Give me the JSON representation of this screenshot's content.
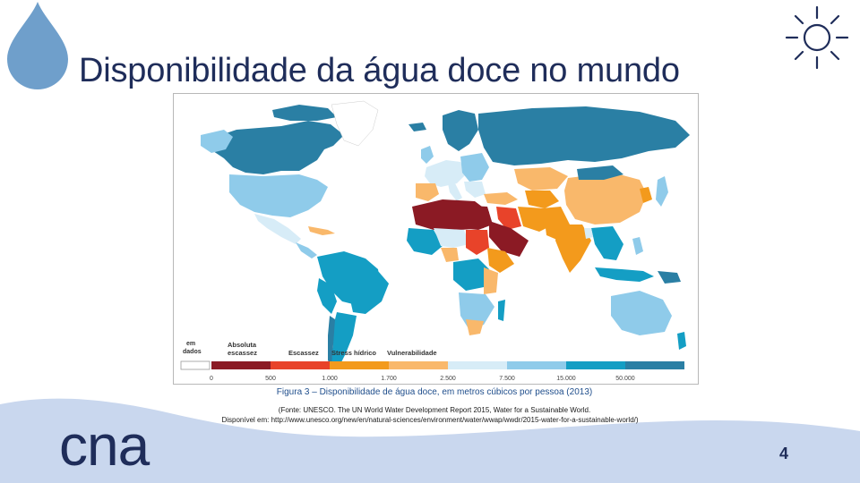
{
  "slide": {
    "title": "Disponibilidade da água doce no mundo",
    "page_number": "4",
    "logo_text": "cna"
  },
  "figure": {
    "caption": "Figura 3 – Disponibilidade de água doce, em metros cúbicos por pessoa (2013)",
    "source_line1": "(Fonte: UNESCO. The UN World Water Development Report 2015, Water for a Sustainable World.",
    "source_line2": "Disponível em: http://www.unesco.org/new/en/natural-sciences/environment/water/wwap/wwdr/2015-water-for-a-sustainable-world/)"
  },
  "map_legend": {
    "no_data_line1": "em",
    "no_data_line2": "dados",
    "categories": [
      {
        "label1": "Absoluta",
        "label2": "escassez",
        "color": "#8b1a24"
      },
      {
        "label1": "",
        "label2": "Escassez",
        "color": "#e8432a"
      },
      {
        "label1": "",
        "label2": "Stress hídrico",
        "color": "#f39a1c"
      },
      {
        "label1": "",
        "label2": "Vulnerabilidade",
        "color": "#f9b86b"
      },
      {
        "label1": "",
        "label2": "",
        "color": "#d7ecf7"
      },
      {
        "label1": "",
        "label2": "",
        "color": "#8fcbea"
      },
      {
        "label1": "",
        "label2": "",
        "color": "#149ec4"
      },
      {
        "label1": "",
        "label2": "",
        "color": "#2a7fa4"
      }
    ],
    "no_data_color": "#ffffff",
    "ticks": [
      "0",
      "500",
      "1.000",
      "1.700",
      "2.500",
      "7.500",
      "15.000",
      "50.000"
    ]
  },
  "colors": {
    "title": "#1f2d5a",
    "caption": "#1f4e8c",
    "drop": "#6f9fcb",
    "wave": "#c9d7ee"
  }
}
